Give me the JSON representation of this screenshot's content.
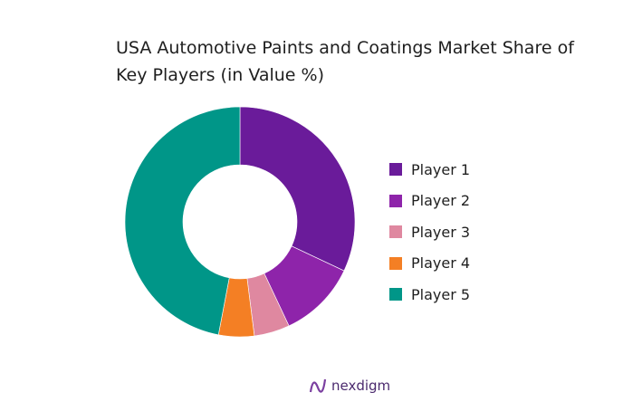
{
  "chart_data": {
    "type": "pie",
    "variant": "donut",
    "title": "USA Automotive Paints and Coatings Market Share of Key Players (in Value %)",
    "categories": [
      "Player 1",
      "Player 2",
      "Player 3",
      "Player 4",
      "Player 5"
    ],
    "values": [
      32,
      11,
      5,
      5,
      47
    ],
    "colors": [
      "#6a1b9a",
      "#8e24aa",
      "#df88a0",
      "#f47f24",
      "#009688"
    ],
    "legend_position": "right",
    "start": "top, clockwise"
  },
  "logo": {
    "text": "nexdigm"
  }
}
